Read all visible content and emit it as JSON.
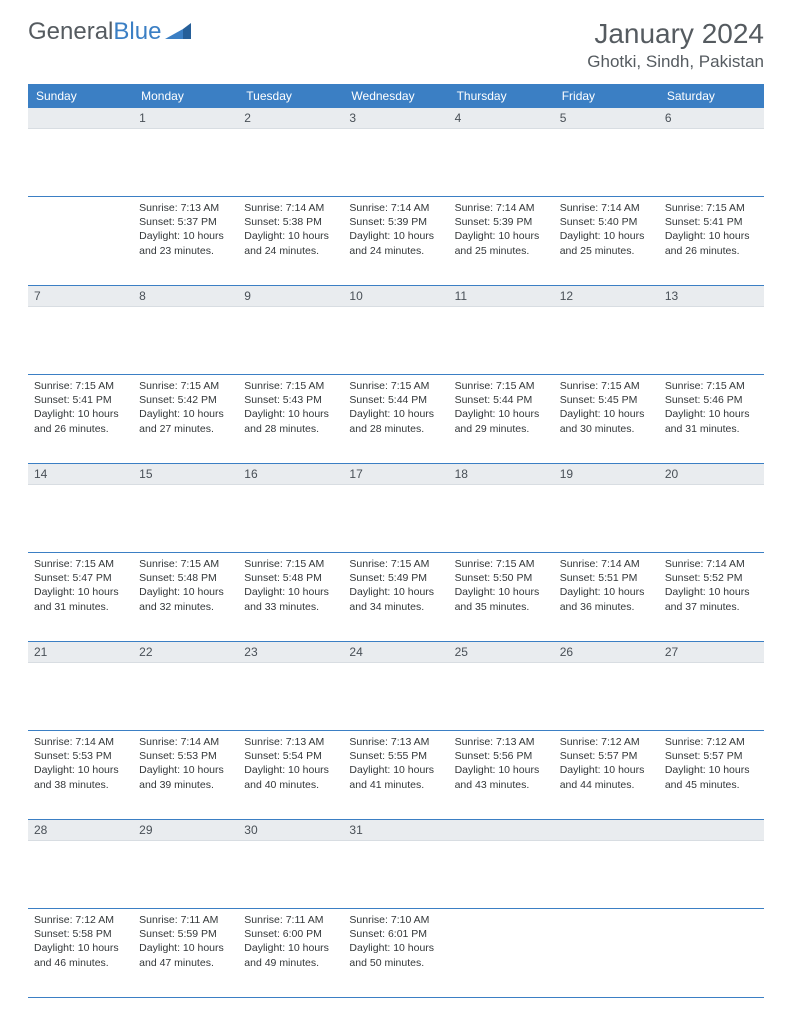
{
  "logo": {
    "text1": "General",
    "text2": "Blue"
  },
  "title": "January 2024",
  "location": "Ghotki, Sindh, Pakistan",
  "colors": {
    "accent": "#3b7fc4",
    "header_text": "#555b60",
    "daynum_bg": "#e9ecef"
  },
  "weekdays": [
    "Sunday",
    "Monday",
    "Tuesday",
    "Wednesday",
    "Thursday",
    "Friday",
    "Saturday"
  ],
  "weeks": [
    [
      null,
      {
        "n": "1",
        "sr": "Sunrise: 7:13 AM",
        "ss": "Sunset: 5:37 PM",
        "d1": "Daylight: 10 hours",
        "d2": "and 23 minutes."
      },
      {
        "n": "2",
        "sr": "Sunrise: 7:14 AM",
        "ss": "Sunset: 5:38 PM",
        "d1": "Daylight: 10 hours",
        "d2": "and 24 minutes."
      },
      {
        "n": "3",
        "sr": "Sunrise: 7:14 AM",
        "ss": "Sunset: 5:39 PM",
        "d1": "Daylight: 10 hours",
        "d2": "and 24 minutes."
      },
      {
        "n": "4",
        "sr": "Sunrise: 7:14 AM",
        "ss": "Sunset: 5:39 PM",
        "d1": "Daylight: 10 hours",
        "d2": "and 25 minutes."
      },
      {
        "n": "5",
        "sr": "Sunrise: 7:14 AM",
        "ss": "Sunset: 5:40 PM",
        "d1": "Daylight: 10 hours",
        "d2": "and 25 minutes."
      },
      {
        "n": "6",
        "sr": "Sunrise: 7:15 AM",
        "ss": "Sunset: 5:41 PM",
        "d1": "Daylight: 10 hours",
        "d2": "and 26 minutes."
      }
    ],
    [
      {
        "n": "7",
        "sr": "Sunrise: 7:15 AM",
        "ss": "Sunset: 5:41 PM",
        "d1": "Daylight: 10 hours",
        "d2": "and 26 minutes."
      },
      {
        "n": "8",
        "sr": "Sunrise: 7:15 AM",
        "ss": "Sunset: 5:42 PM",
        "d1": "Daylight: 10 hours",
        "d2": "and 27 minutes."
      },
      {
        "n": "9",
        "sr": "Sunrise: 7:15 AM",
        "ss": "Sunset: 5:43 PM",
        "d1": "Daylight: 10 hours",
        "d2": "and 28 minutes."
      },
      {
        "n": "10",
        "sr": "Sunrise: 7:15 AM",
        "ss": "Sunset: 5:44 PM",
        "d1": "Daylight: 10 hours",
        "d2": "and 28 minutes."
      },
      {
        "n": "11",
        "sr": "Sunrise: 7:15 AM",
        "ss": "Sunset: 5:44 PM",
        "d1": "Daylight: 10 hours",
        "d2": "and 29 minutes."
      },
      {
        "n": "12",
        "sr": "Sunrise: 7:15 AM",
        "ss": "Sunset: 5:45 PM",
        "d1": "Daylight: 10 hours",
        "d2": "and 30 minutes."
      },
      {
        "n": "13",
        "sr": "Sunrise: 7:15 AM",
        "ss": "Sunset: 5:46 PM",
        "d1": "Daylight: 10 hours",
        "d2": "and 31 minutes."
      }
    ],
    [
      {
        "n": "14",
        "sr": "Sunrise: 7:15 AM",
        "ss": "Sunset: 5:47 PM",
        "d1": "Daylight: 10 hours",
        "d2": "and 31 minutes."
      },
      {
        "n": "15",
        "sr": "Sunrise: 7:15 AM",
        "ss": "Sunset: 5:48 PM",
        "d1": "Daylight: 10 hours",
        "d2": "and 32 minutes."
      },
      {
        "n": "16",
        "sr": "Sunrise: 7:15 AM",
        "ss": "Sunset: 5:48 PM",
        "d1": "Daylight: 10 hours",
        "d2": "and 33 minutes."
      },
      {
        "n": "17",
        "sr": "Sunrise: 7:15 AM",
        "ss": "Sunset: 5:49 PM",
        "d1": "Daylight: 10 hours",
        "d2": "and 34 minutes."
      },
      {
        "n": "18",
        "sr": "Sunrise: 7:15 AM",
        "ss": "Sunset: 5:50 PM",
        "d1": "Daylight: 10 hours",
        "d2": "and 35 minutes."
      },
      {
        "n": "19",
        "sr": "Sunrise: 7:14 AM",
        "ss": "Sunset: 5:51 PM",
        "d1": "Daylight: 10 hours",
        "d2": "and 36 minutes."
      },
      {
        "n": "20",
        "sr": "Sunrise: 7:14 AM",
        "ss": "Sunset: 5:52 PM",
        "d1": "Daylight: 10 hours",
        "d2": "and 37 minutes."
      }
    ],
    [
      {
        "n": "21",
        "sr": "Sunrise: 7:14 AM",
        "ss": "Sunset: 5:53 PM",
        "d1": "Daylight: 10 hours",
        "d2": "and 38 minutes."
      },
      {
        "n": "22",
        "sr": "Sunrise: 7:14 AM",
        "ss": "Sunset: 5:53 PM",
        "d1": "Daylight: 10 hours",
        "d2": "and 39 minutes."
      },
      {
        "n": "23",
        "sr": "Sunrise: 7:13 AM",
        "ss": "Sunset: 5:54 PM",
        "d1": "Daylight: 10 hours",
        "d2": "and 40 minutes."
      },
      {
        "n": "24",
        "sr": "Sunrise: 7:13 AM",
        "ss": "Sunset: 5:55 PM",
        "d1": "Daylight: 10 hours",
        "d2": "and 41 minutes."
      },
      {
        "n": "25",
        "sr": "Sunrise: 7:13 AM",
        "ss": "Sunset: 5:56 PM",
        "d1": "Daylight: 10 hours",
        "d2": "and 43 minutes."
      },
      {
        "n": "26",
        "sr": "Sunrise: 7:12 AM",
        "ss": "Sunset: 5:57 PM",
        "d1": "Daylight: 10 hours",
        "d2": "and 44 minutes."
      },
      {
        "n": "27",
        "sr": "Sunrise: 7:12 AM",
        "ss": "Sunset: 5:57 PM",
        "d1": "Daylight: 10 hours",
        "d2": "and 45 minutes."
      }
    ],
    [
      {
        "n": "28",
        "sr": "Sunrise: 7:12 AM",
        "ss": "Sunset: 5:58 PM",
        "d1": "Daylight: 10 hours",
        "d2": "and 46 minutes."
      },
      {
        "n": "29",
        "sr": "Sunrise: 7:11 AM",
        "ss": "Sunset: 5:59 PM",
        "d1": "Daylight: 10 hours",
        "d2": "and 47 minutes."
      },
      {
        "n": "30",
        "sr": "Sunrise: 7:11 AM",
        "ss": "Sunset: 6:00 PM",
        "d1": "Daylight: 10 hours",
        "d2": "and 49 minutes."
      },
      {
        "n": "31",
        "sr": "Sunrise: 7:10 AM",
        "ss": "Sunset: 6:01 PM",
        "d1": "Daylight: 10 hours",
        "d2": "and 50 minutes."
      },
      null,
      null,
      null
    ]
  ]
}
